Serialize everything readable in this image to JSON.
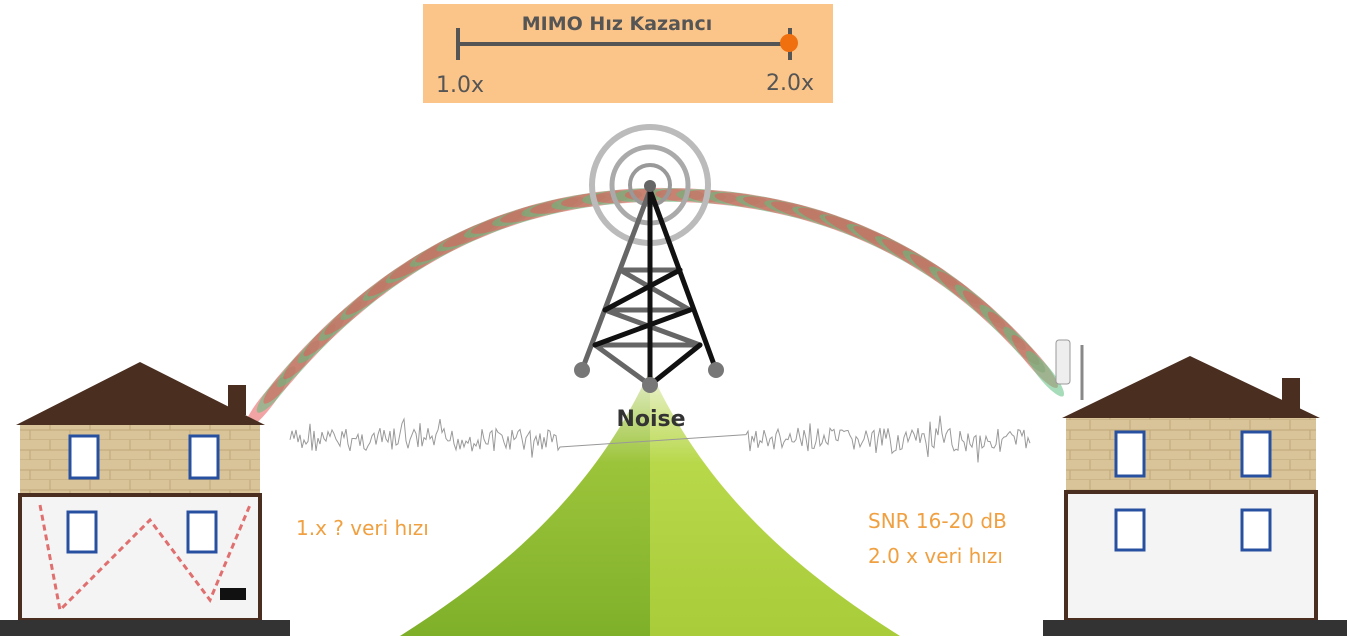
{
  "slider": {
    "title": "MIMO Hız Kazancı",
    "min_label": "1.0x",
    "max_label": "2.0x"
  },
  "tower": {
    "label": "Noise"
  },
  "left_house": {
    "caption": "1.x ? veri hızı"
  },
  "right_house": {
    "caption_lines": [
      "SNR 16-20 dB",
      "2.0 x veri hızı"
    ]
  }
}
